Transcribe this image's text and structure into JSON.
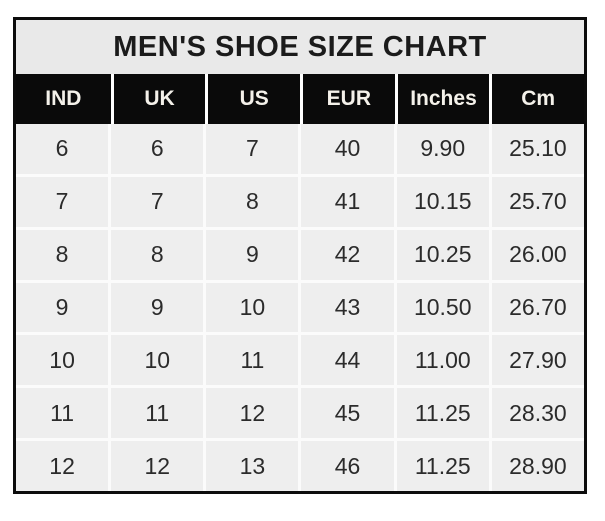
{
  "title": "MEN'S SHOE SIZE CHART",
  "chart_data": {
    "type": "table",
    "title": "MEN'S SHOE SIZE CHART",
    "columns": [
      "IND",
      "UK",
      "US",
      "EUR",
      "Inches",
      "Cm"
    ],
    "rows": [
      [
        "6",
        "6",
        "7",
        "40",
        "9.90",
        "25.10"
      ],
      [
        "7",
        "7",
        "8",
        "41",
        "10.15",
        "25.70"
      ],
      [
        "8",
        "8",
        "9",
        "42",
        "10.25",
        "26.00"
      ],
      [
        "9",
        "9",
        "10",
        "43",
        "10.50",
        "26.70"
      ],
      [
        "10",
        "10",
        "11",
        "44",
        "11.00",
        "27.90"
      ],
      [
        "11",
        "11",
        "12",
        "45",
        "11.25",
        "28.30"
      ],
      [
        "12",
        "12",
        "13",
        "46",
        "11.25",
        "28.90"
      ]
    ]
  },
  "colors": {
    "page_background": "#ffffff",
    "outer_border": "#0c0c0c",
    "title_background": "#e9e9e9",
    "title_text": "#1b1b1b",
    "header_background": "#0a0a0a",
    "header_text": "#f4f1ea",
    "cell_background": "#eeeeee",
    "gridline": "#fbfbfb",
    "cell_text": "#2b2b2b"
  }
}
